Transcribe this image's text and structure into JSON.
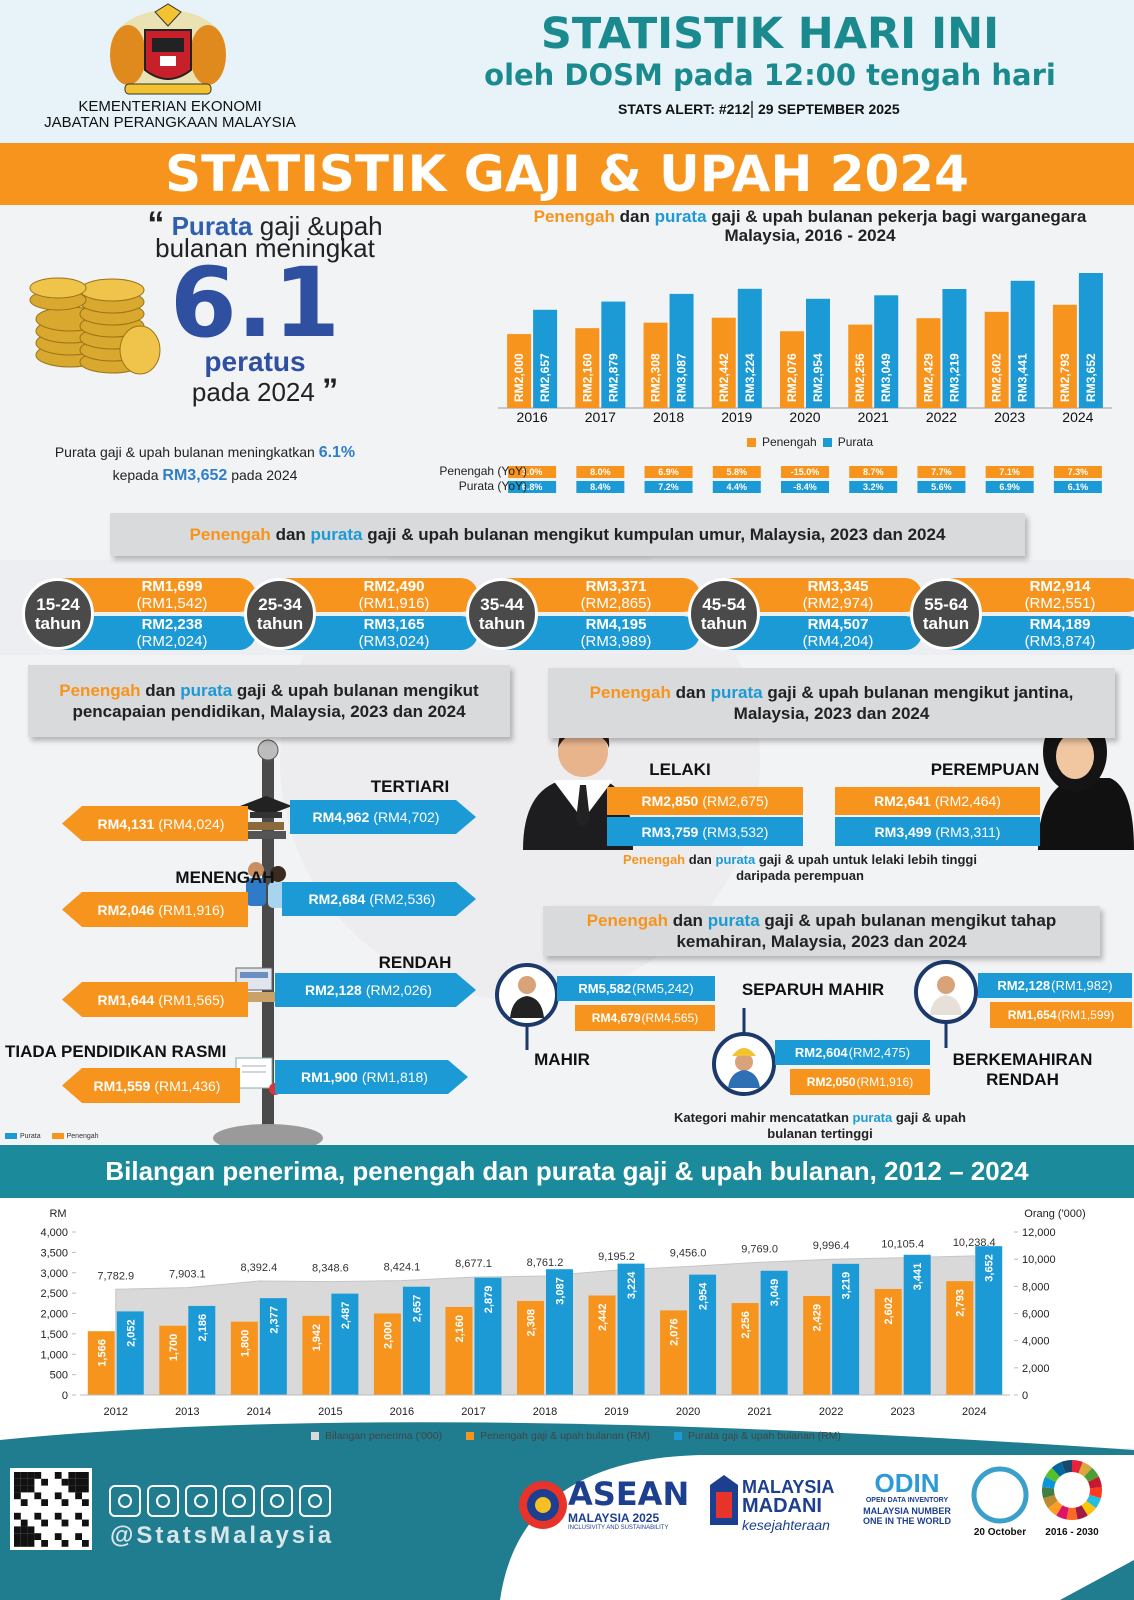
{
  "header": {
    "ministry": "KEMENTERIAN EKONOMI",
    "department": "JABATAN PERANGKAAN MALAYSIA",
    "title": "STATISTIK HARI INI",
    "subtitle": "oleh DOSM pada 12:00 tengah hari",
    "alert": "STATS ALERT: #212",
    "date": "29 SEPTEMBER 2025"
  },
  "banner": "STATISTIK GAJI & UPAH 2024",
  "highlight": {
    "open_mark": "“",
    "quote": [
      "Purata",
      "gaji &upah",
      "bulanan meningkat"
    ],
    "figure": "6.1",
    "unit": "peratus",
    "period": "pada 2024",
    "close_mark": "”",
    "note": [
      "Purata gaji & upah bulanan meningkatkan",
      "6.1%",
      "kepada",
      "RM3,652",
      "pada 2024"
    ]
  },
  "chart_data": [
    {
      "type": "bar",
      "title": [
        "Penengah",
        "dan",
        "purata",
        "gaji & upah bulanan pekerja bagi warganegara Malaysia, 2016 - 2024"
      ],
      "categories": [
        "2016",
        "2017",
        "2018",
        "2019",
        "2020",
        "2021",
        "2022",
        "2023",
        "2024"
      ],
      "series": [
        {
          "name": "Penengah",
          "color": "#f7941d",
          "values": [
            2000,
            2160,
            2308,
            2442,
            2076,
            2256,
            2429,
            2602,
            2793
          ],
          "value_labels": [
            "RM2,000",
            "RM2,160",
            "RM2,308",
            "RM2,442",
            "RM2,076",
            "RM2,256",
            "RM2,429",
            "RM2,602",
            "RM2,793"
          ]
        },
        {
          "name": "Purata",
          "color": "#1b9ad6",
          "values": [
            2657,
            2879,
            3087,
            3224,
            2954,
            3049,
            3219,
            3441,
            3652
          ],
          "value_labels": [
            "RM2,657",
            "RM2,879",
            "RM3,087",
            "RM3,224",
            "RM2,954",
            "RM3,049",
            "RM3,219",
            "RM3,441",
            "RM3,652"
          ]
        }
      ]
    },
    {
      "type": "combo",
      "title": "Bilangan penerima, penengah dan purata gaji & upah bulanan, 2012 – 2024",
      "categories": [
        "2012",
        "2013",
        "2014",
        "2015",
        "2016",
        "2017",
        "2018",
        "2019",
        "2020",
        "2021",
        "2022",
        "2023",
        "2024"
      ],
      "ylabel": "RM",
      "y2label": "Orang ('000)",
      "ylim": [
        0,
        4000
      ],
      "yticks": [
        0,
        500,
        {
          "value": 1000,
          "label": "1,000"
        },
        {
          "value": 1500,
          "label": "1,500"
        },
        {
          "value": 2000,
          "label": "2,000"
        },
        {
          "value": 2500,
          "label": "2,500"
        },
        {
          "value": 3000,
          "label": "3,000"
        },
        {
          "value": 3500,
          "label": "3,500"
        },
        {
          "value": 4000,
          "label": "4,000"
        }
      ],
      "y2lim": [
        0,
        12000
      ],
      "y2ticks": [
        0,
        {
          "value": 2000,
          "label": "2,000"
        },
        {
          "value": 4000,
          "label": "4,000"
        },
        {
          "value": 6000,
          "label": "6,000"
        },
        {
          "value": 8000,
          "label": "8,000"
        },
        {
          "value": 10000,
          "label": "10,000"
        },
        {
          "value": 12000,
          "label": "12,000"
        }
      ],
      "series": [
        {
          "name": "Bilangan penerima ('000)",
          "kind": "area",
          "axis": "y2",
          "color": "#d9d9d9",
          "values": [
            7782.9,
            7903.1,
            8392.4,
            8348.6,
            8424.1,
            8677.1,
            8761.2,
            9195.2,
            9456.0,
            9769.0,
            9996.4,
            10105.4,
            10238.4
          ],
          "value_labels": [
            "7,782.9",
            "7,903.1",
            "8,392.4",
            "8,348.6",
            "8,424.1",
            "8,677.1",
            "8,761.2",
            "9,195.2",
            "9,456.0",
            "9,769.0",
            "9,996.4",
            "10,105.4",
            "10,238.4"
          ]
        },
        {
          "name": "Penengah gaji & upah bulanan (RM)",
          "kind": "bar",
          "color": "#f7941d",
          "values": [
            1566,
            1700,
            1800,
            1942,
            2000,
            2160,
            2308,
            2442,
            2076,
            2256,
            2429,
            2602,
            2793
          ],
          "value_labels": [
            "1,566",
            "1,700",
            "1,800",
            "1,942",
            "2,000",
            "2,160",
            "2,308",
            "2,442",
            "2,076",
            "2,256",
            "2,429",
            "2,602",
            "2,793"
          ]
        },
        {
          "name": "Purata gaji & upah bulanan (RM)",
          "kind": "bar",
          "color": "#1b9ad6",
          "values": [
            2052,
            2186,
            2377,
            2487,
            2657,
            2879,
            3087,
            3224,
            2954,
            3049,
            3219,
            3441,
            3652
          ],
          "value_labels": [
            "2,052",
            "2,186",
            "2,377",
            "2,487",
            "2,657",
            "2,879",
            "3,087",
            "3,224",
            "2,954",
            "3,049",
            "3,219",
            "3,441",
            "3,652"
          ]
        }
      ]
    }
  ],
  "yoy": {
    "rows": [
      {
        "label": "Penengah (YoY)",
        "values": [
          "3.0%",
          "8.0%",
          "6.9%",
          "5.8%",
          "-15.0%",
          "8.7%",
          "7.7%",
          "7.1%",
          "7.3%"
        ]
      },
      {
        "label": "Purata (YoY)",
        "values": [
          "6.8%",
          "8.4%",
          "7.2%",
          "4.4%",
          "-8.4%",
          "3.2%",
          "5.6%",
          "6.9%",
          "6.1%"
        ]
      }
    ]
  },
  "age": {
    "title": [
      "Penengah",
      "dan",
      "purata",
      "gaji & upah bulanan mengikut kumpulan umur, Malaysia, 2023 dan 2024"
    ],
    "groups": [
      {
        "range": "15-24",
        "unit": "tahun",
        "median": "RM1,699",
        "median_prev": "(RM1,542)",
        "mean": "RM2,238",
        "mean_prev": "(RM2,024)"
      },
      {
        "range": "25-34",
        "unit": "tahun",
        "median": "RM2,490",
        "median_prev": "(RM1,916)",
        "mean": "RM3,165",
        "mean_prev": "(RM3,024)"
      },
      {
        "range": "35-44",
        "unit": "tahun",
        "median": "RM3,371",
        "median_prev": "(RM2,865)",
        "mean": "RM4,195",
        "mean_prev": "(RM3,989)"
      },
      {
        "range": "45-54",
        "unit": "tahun",
        "median": "RM3,345",
        "median_prev": "(RM2,974)",
        "mean": "RM4,507",
        "mean_prev": "(RM4,204)"
      },
      {
        "range": "55-64",
        "unit": "tahun",
        "median": "RM2,914",
        "median_prev": "(RM2,551)",
        "mean": "RM4,189",
        "mean_prev": "(RM3,874)"
      }
    ]
  },
  "education": {
    "title": [
      "Penengah",
      "dan",
      "purata",
      "gaji & upah bulanan mengikut pencapaian pendidikan, Malaysia, 2023 dan 2024"
    ],
    "levels": [
      {
        "label": "TERTIARI",
        "median": "RM4,131",
        "median_prev": "(RM4,024)",
        "mean": "RM4,962",
        "mean_prev": "(RM4,702)"
      },
      {
        "label": "MENENGAH",
        "median": "RM2,046",
        "median_prev": "(RM1,916)",
        "mean": "RM2,684",
        "mean_prev": "(RM2,536)"
      },
      {
        "label": "RENDAH",
        "median": "RM1,644",
        "median_prev": "(RM1,565)",
        "mean": "RM2,128",
        "mean_prev": "(RM2,026)"
      },
      {
        "label": "TIADA PENDIDIKAN RASMI",
        "median": "RM1,559",
        "median_prev": "(RM1,436)",
        "mean": "RM1,900",
        "mean_prev": "(RM1,818)"
      }
    ],
    "legend": [
      "Purata",
      "Penengah"
    ]
  },
  "gender": {
    "title": [
      "Penengah",
      "dan",
      "purata",
      "gaji & upah bulanan mengikut jantina, Malaysia, 2023 dan 2024"
    ],
    "groups": [
      {
        "label": "LELAKI",
        "median": "RM2,850",
        "median_prev": "(RM2,675)",
        "mean": "RM3,759",
        "mean_prev": "(RM3,532)"
      },
      {
        "label": "PEREMPUAN",
        "median": "RM2,641",
        "median_prev": "(RM2,464)",
        "mean": "RM3,499",
        "mean_prev": "(RM3,311)"
      }
    ],
    "note": [
      "Penengah",
      "dan",
      "purata",
      "gaji & upah untuk lelaki lebih tinggi daripada perempuan"
    ]
  },
  "skill": {
    "title": [
      "Penengah",
      "dan",
      "purata",
      "gaji & upah bulanan mengikut tahap kemahiran, Malaysia, 2023 dan 2024"
    ],
    "groups": [
      {
        "label": "MAHIR",
        "mean": "RM5,582",
        "mean_prev": "(RM5,242)",
        "median": "RM4,679",
        "median_prev": "(RM4,565)"
      },
      {
        "label": "SEPARUH MAHIR",
        "mean": "RM2,604",
        "mean_prev": "(RM2,475)",
        "median": "RM2,050",
        "median_prev": "(RM1,916)"
      },
      {
        "label": "BERKEMAHIRAN RENDAH",
        "mean": "RM2,128",
        "mean_prev": "(RM1,982)",
        "median": "RM1,654",
        "median_prev": "(RM1,599)"
      }
    ],
    "note": [
      "Kategori mahir  mencatatkan",
      "purata",
      "gaji & upah bulanan tertinggi"
    ]
  },
  "footer": {
    "handle": "@StatsMalaysia",
    "logos": [
      {
        "name": "ASEAN",
        "line1": "MALAYSIA 2025",
        "line2": "INCLUSIVITY AND SUSTAINABILITY"
      },
      {
        "name": "MALAYSIA",
        "line1": "MADANI",
        "line2": "kesejahteraan"
      },
      {
        "name": "ODIN",
        "line1": "OPEN DATA INVENTORY",
        "line2": "MALAYSIA NUMBER ONE IN THE WORLD"
      },
      {
        "name": "20 October"
      },
      {
        "name": "2016 - 2030"
      }
    ]
  }
}
